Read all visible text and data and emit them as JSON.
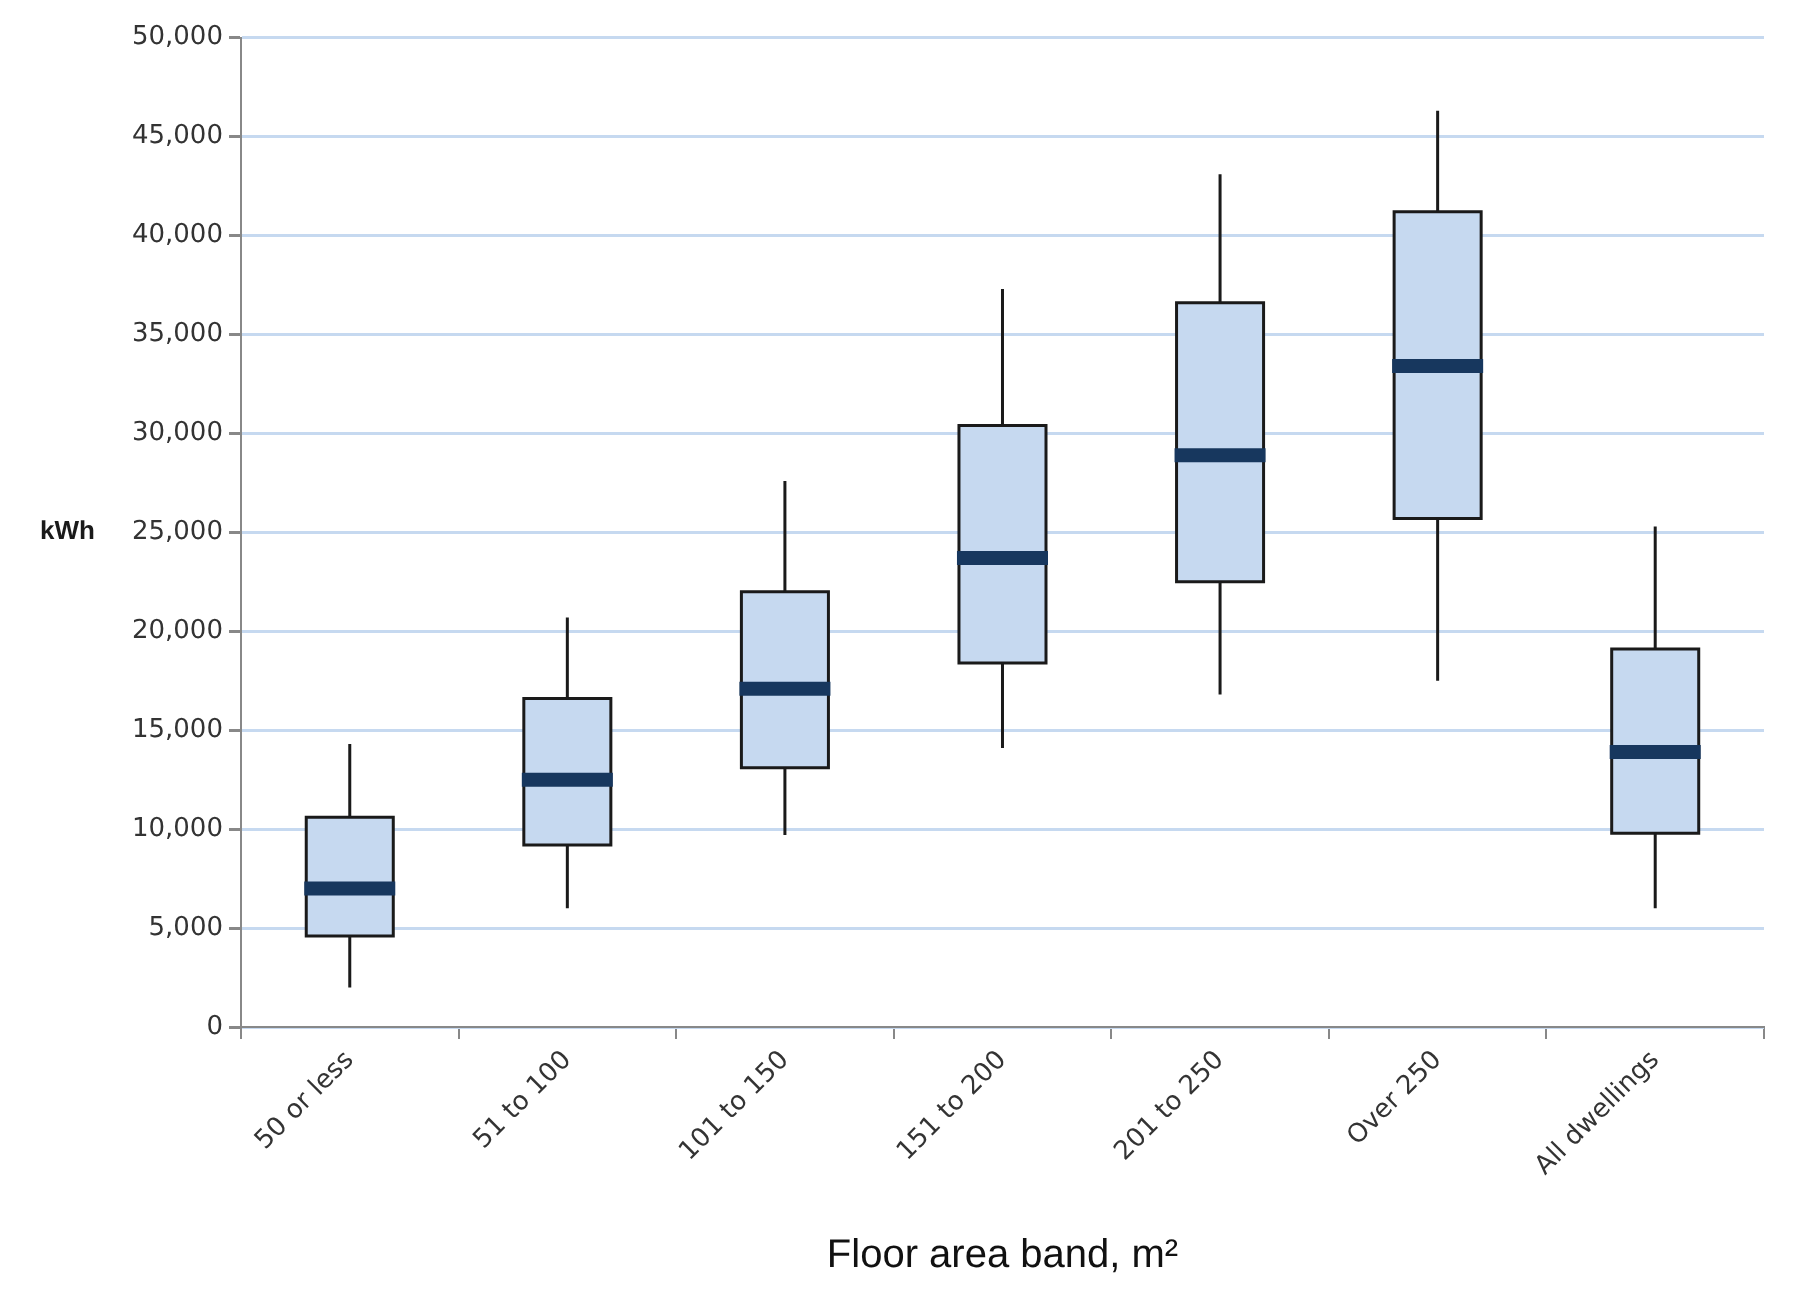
{
  "chart_data": {
    "type": "box",
    "xlabel": "Floor area band, m²",
    "ylabel": "kWh",
    "categories": [
      "50 or less",
      "51 to 100",
      "101 to 150",
      "151 to 200",
      "201 to 250",
      "Over 250",
      "All dwellings"
    ],
    "series": [
      {
        "color": "#c6d9f0",
        "boxes": [
          {
            "low": 2000,
            "q1": 4600,
            "median": 7000,
            "q3": 10600,
            "high": 14300
          },
          {
            "low": 6000,
            "q1": 9200,
            "median": 12500,
            "q3": 16600,
            "high": 20700
          },
          {
            "low": 9700,
            "q1": 13100,
            "median": 17100,
            "q3": 22000,
            "high": 27600
          },
          {
            "low": 14100,
            "q1": 18400,
            "median": 23700,
            "q3": 30400,
            "high": 37300
          },
          {
            "low": 16800,
            "q1": 22500,
            "median": 28900,
            "q3": 36600,
            "high": 43100
          },
          {
            "low": 17500,
            "q1": 25700,
            "median": 33400,
            "q3": 41200,
            "high": 46300
          },
          {
            "low": 6000,
            "q1": 9800,
            "median": 13900,
            "q3": 19100,
            "high": 25300
          }
        ]
      }
    ],
    "ylim": [
      0,
      50000
    ],
    "yticks": [
      0,
      {
        "value": 5000,
        "label": "5,000"
      },
      {
        "value": 10000,
        "label": "10,000"
      },
      {
        "value": 15000,
        "label": "15,000"
      },
      {
        "value": 20000,
        "label": "20,000"
      },
      {
        "value": 25000,
        "label": "25,000"
      },
      {
        "value": 30000,
        "label": "30,000"
      },
      {
        "value": 35000,
        "label": "35,000"
      },
      {
        "value": 40000,
        "label": "40,000"
      },
      {
        "value": 45000,
        "label": "45,000"
      },
      {
        "value": 50000,
        "label": "50,000"
      }
    ],
    "grid": "y",
    "legend": false
  }
}
